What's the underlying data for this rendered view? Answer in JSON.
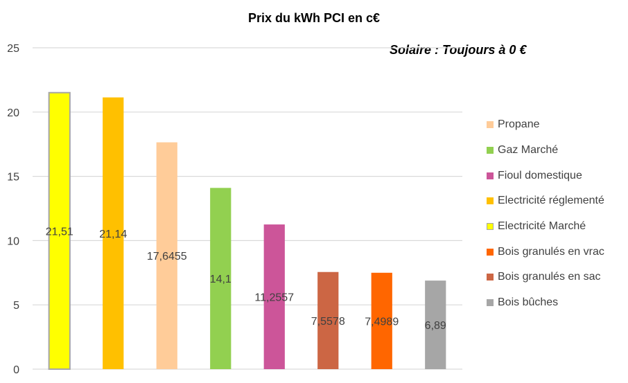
{
  "chart_data": {
    "type": "bar",
    "title": "Prix du kWh PCI en c€",
    "annotation": "Solaire : Toujours à 0 €",
    "xlabel": "",
    "ylabel": "",
    "ylim": [
      0,
      25
    ],
    "yticks": [
      "0",
      "5",
      "10",
      "15",
      "20",
      "25"
    ],
    "grid": true,
    "legend_position": "right",
    "values": [
      21.51,
      21.14,
      17.6455,
      14.1,
      11.2557,
      7.5578,
      7.4989,
      6.89
    ],
    "data_labels": [
      "21,51",
      "21,14",
      "17,6455",
      "14,1",
      "11,2557",
      "7,5578",
      "7,4989",
      "6,89"
    ],
    "colors": [
      "#FFFF00",
      "#FFC000",
      "#FFCC99",
      "#92D050",
      "#CC5599",
      "#CC6644",
      "#FF6600",
      "#A6A6A6"
    ],
    "bar_outline": [
      true,
      false,
      false,
      false,
      false,
      false,
      false,
      false
    ],
    "legend": [
      {
        "label": "Propane",
        "color": "#FFCC99"
      },
      {
        "label": "Gaz Marché",
        "color": "#92D050"
      },
      {
        "label": "Fioul domestique",
        "color": "#CC5599"
      },
      {
        "label": "Electricité réglementé",
        "color": "#FFC000"
      },
      {
        "label": "Electricité Marché",
        "color": "#FFFF00",
        "outline": true
      },
      {
        "label": "Bois granulés en vrac",
        "color": "#FF6600"
      },
      {
        "label": "Bois granulés en sac",
        "color": "#CC6644"
      },
      {
        "label": "Bois bûches",
        "color": "#A6A6A6"
      }
    ]
  }
}
